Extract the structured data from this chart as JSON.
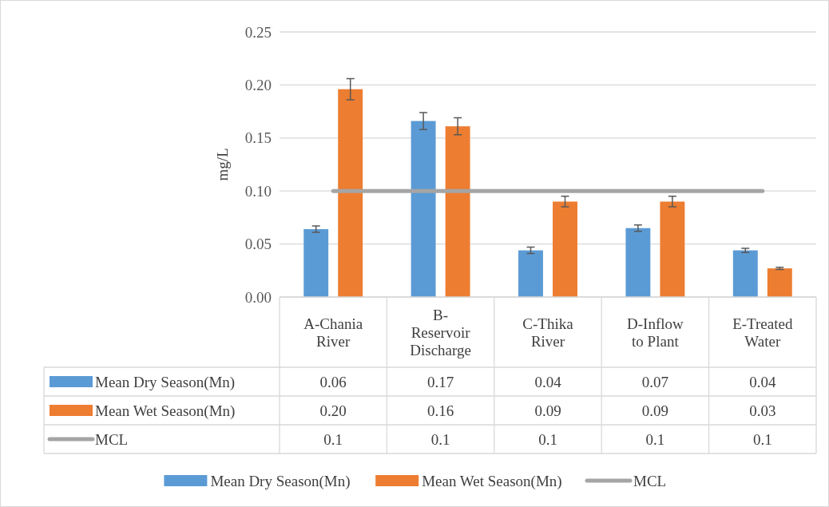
{
  "chart_data": {
    "type": "bar",
    "ylabel": "mg/L",
    "categories": [
      "A-Chania River",
      "B-Reservoir Discharge",
      "C-Thika River",
      "D-Inflow to Plant",
      "E-Treated Water"
    ],
    "series": [
      {
        "name": "Mean Dry Season(Mn)",
        "color": "#5b9bd5",
        "values": [
          0.064,
          0.166,
          0.044,
          0.065,
          0.044
        ],
        "errors": [
          0.003,
          0.008,
          0.003,
          0.003,
          0.002
        ],
        "value_labels": [
          "0.06",
          "0.17",
          "0.04",
          "0.07",
          "0.04"
        ]
      },
      {
        "name": "Mean Wet Season(Mn)",
        "color": "#ed7d31",
        "values": [
          0.196,
          0.161,
          0.09,
          0.09,
          0.027
        ],
        "errors": [
          0.01,
          0.008,
          0.005,
          0.005,
          0.001
        ],
        "value_labels": [
          "0.20",
          "0.16",
          "0.09",
          "0.09",
          "0.03"
        ]
      },
      {
        "name": "MCL",
        "type": "line",
        "color": "#a5a5a5",
        "values": [
          0.1,
          0.1,
          0.1,
          0.1,
          0.1
        ],
        "value_labels": [
          "0.1",
          "0.1",
          "0.1",
          "0.1",
          "0.1"
        ]
      }
    ],
    "ylim": [
      0,
      0.25
    ],
    "yticks": [
      {
        "value": 0,
        "label": "0.00"
      },
      0.05,
      {
        "value": 0.1,
        "label": "0.10"
      },
      0.15,
      {
        "value": 0.2,
        "label": "0.20"
      },
      0.25
    ],
    "grid": "y",
    "legend": "bottom"
  }
}
